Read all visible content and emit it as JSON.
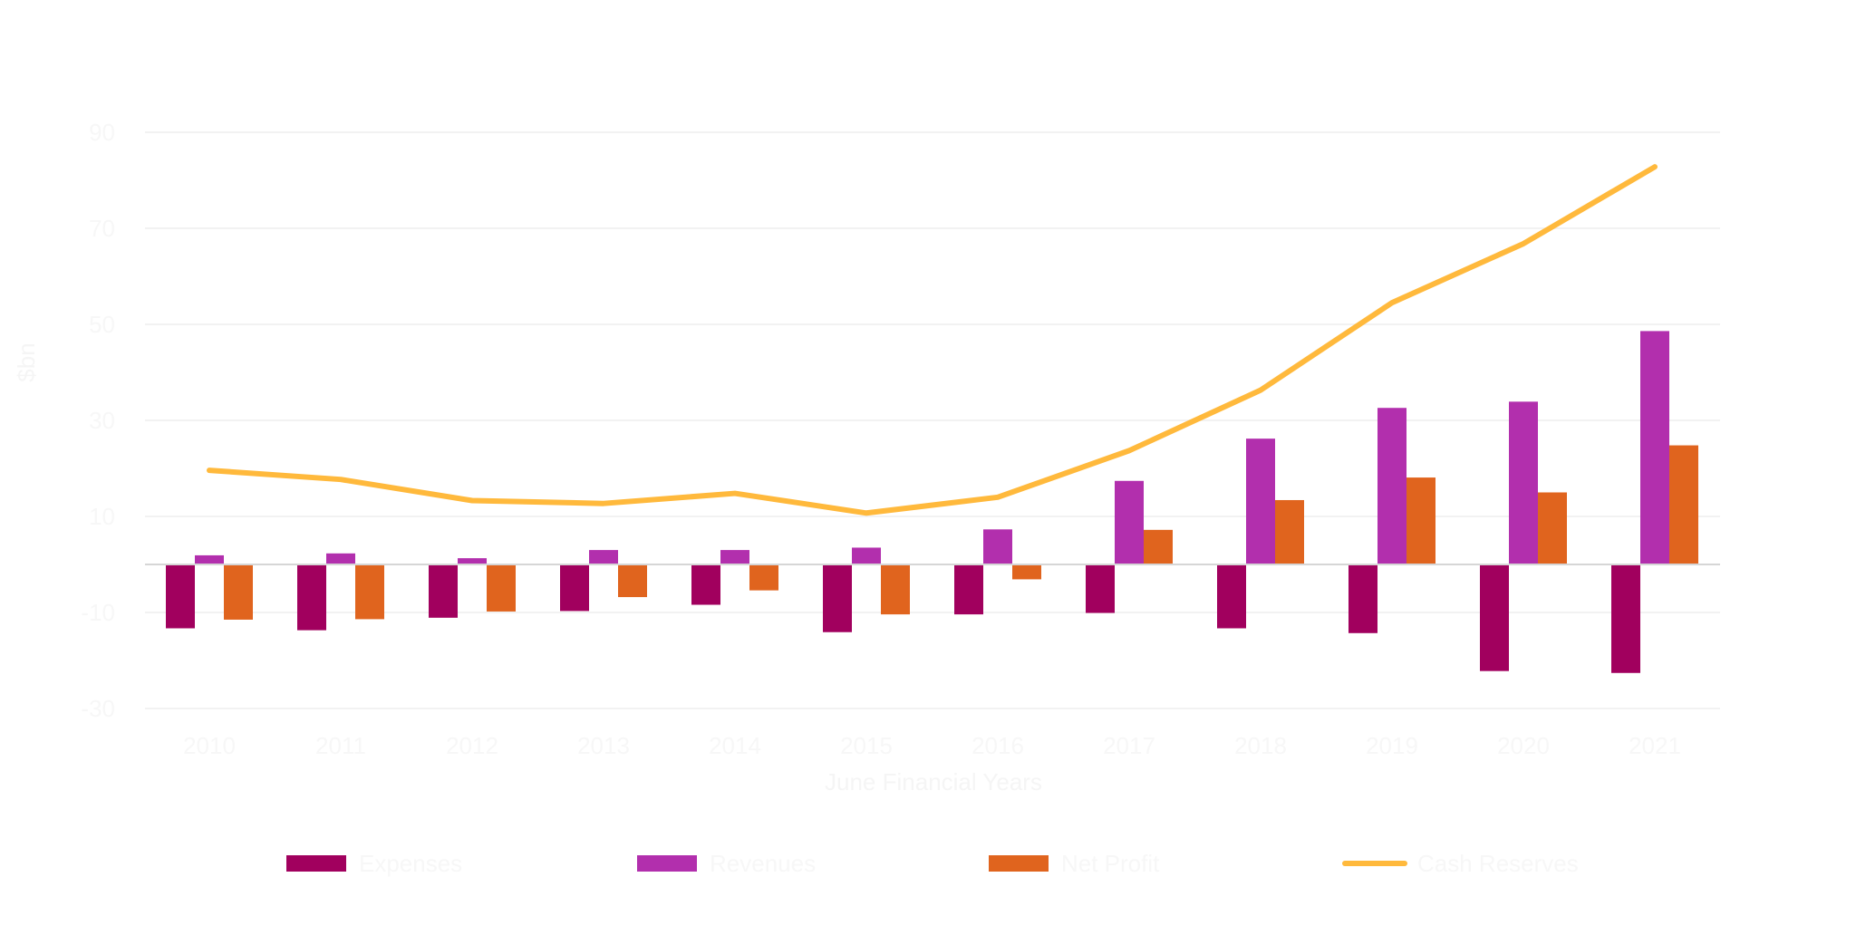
{
  "chart_data": {
    "type": "bar",
    "title": "",
    "xlabel": "June Financial Years",
    "ylabel": "$bn",
    "ylim": [
      -30,
      90
    ],
    "yticks": [
      -30,
      -10,
      10,
      30,
      50,
      70,
      90
    ],
    "grid": true,
    "legend_position": "bottom",
    "categories": [
      "2010",
      "2011",
      "2012",
      "2013",
      "2014",
      "2015",
      "2016",
      "2017",
      "2018",
      "2019",
      "2020",
      "2021"
    ],
    "series": [
      {
        "name": "Expenses",
        "type": "bar",
        "color": "#a1005e",
        "values": [
          -13.3,
          -13.7,
          -11.1,
          -9.7,
          -8.4,
          -14.1,
          -10.4,
          -10.1,
          -13.3,
          -14.3,
          -22.2,
          -22.6
        ]
      },
      {
        "name": "Revenues",
        "type": "bar",
        "color": "#b22fad",
        "values": [
          1.9,
          2.3,
          1.3,
          3.0,
          3.0,
          3.5,
          7.3,
          17.4,
          26.2,
          32.6,
          33.9,
          48.6
        ]
      },
      {
        "name": "Net Profit",
        "type": "bar",
        "color": "#e0641e",
        "values": [
          -11.5,
          -11.4,
          -9.8,
          -6.8,
          -5.4,
          -10.4,
          -3.1,
          7.2,
          13.4,
          18.1,
          15.0,
          24.8
        ]
      },
      {
        "name": "Cash Reserves",
        "type": "line",
        "color": "#ffb93c",
        "values": [
          19.6,
          17.7,
          13.3,
          12.7,
          14.8,
          10.7,
          14.0,
          23.7,
          36.3,
          54.5,
          66.8,
          82.8
        ]
      }
    ]
  }
}
